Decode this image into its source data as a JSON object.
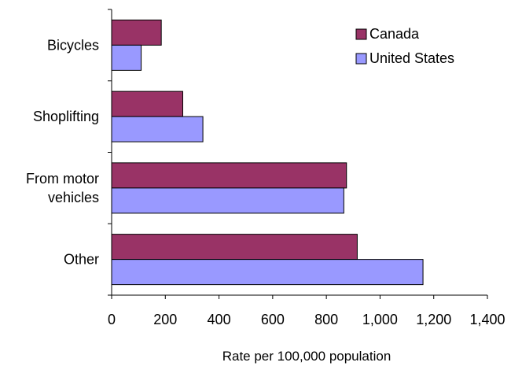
{
  "chart_data": {
    "type": "bar",
    "orientation": "horizontal",
    "categories": [
      [
        "Bicycles"
      ],
      [
        "Shoplifting"
      ],
      [
        "From motor",
        "vehicles"
      ],
      [
        "Other"
      ]
    ],
    "series": [
      {
        "name": "Canada",
        "color": "#993366",
        "values": [
          185,
          265,
          875,
          915
        ]
      },
      {
        "name": "United States",
        "color": "#9999FF",
        "values": [
          110,
          340,
          865,
          1160
        ]
      }
    ],
    "xlabel": "Rate per 100,000 population",
    "ylabel": "",
    "xlim": [
      0,
      1400
    ],
    "xticks": [
      0,
      200,
      400,
      600,
      800,
      1000,
      1200,
      1400
    ],
    "xtick_labels": [
      "0",
      "200",
      "400",
      "600",
      "800",
      "1,000",
      "1,200",
      "1,400"
    ],
    "grid": false,
    "legend_position": "top-right"
  }
}
